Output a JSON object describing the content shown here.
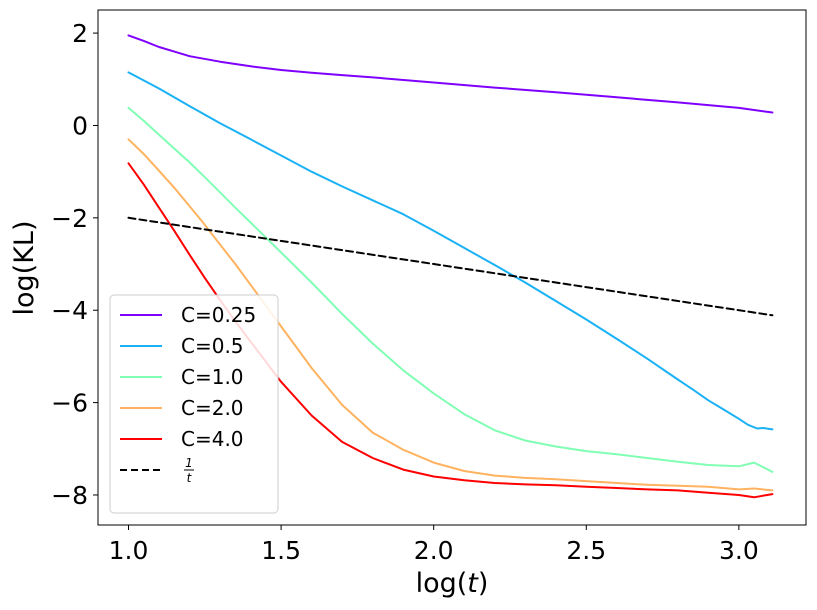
{
  "chart_data": {
    "type": "line",
    "title": "",
    "xlabel": "log(t)",
    "ylabel": "log(KL)",
    "xlim": [
      0.9,
      3.22
    ],
    "ylim": [
      -8.65,
      2.5
    ],
    "xticks": [
      1.0,
      1.5,
      2.0,
      2.5,
      3.0
    ],
    "xtick_labels": [
      "1.0",
      "1.5",
      "2.0",
      "2.5",
      "3.0"
    ],
    "yticks": [
      2,
      0,
      -2,
      -4,
      -6,
      -8
    ],
    "ytick_labels": [
      "2",
      "0",
      "−2",
      "−4",
      "−6",
      "−8"
    ],
    "legend_position": "lower-left",
    "series": [
      {
        "name": "C=0.25",
        "color": "#8000ff",
        "dashed": false,
        "x": [
          1.0,
          1.05,
          1.1,
          1.15,
          1.2,
          1.3,
          1.4,
          1.5,
          1.6,
          1.7,
          1.8,
          2.0,
          2.2,
          2.4,
          2.6,
          2.8,
          3.0,
          3.11
        ],
        "y": [
          1.95,
          1.83,
          1.7,
          1.6,
          1.5,
          1.38,
          1.28,
          1.2,
          1.14,
          1.09,
          1.04,
          0.93,
          0.82,
          0.72,
          0.61,
          0.5,
          0.38,
          0.28
        ]
      },
      {
        "name": "C=0.5",
        "color": "#1ab2f5",
        "dashed": false,
        "x": [
          1.0,
          1.1,
          1.2,
          1.3,
          1.4,
          1.5,
          1.6,
          1.7,
          1.8,
          1.9,
          2.0,
          2.1,
          2.2,
          2.3,
          2.4,
          2.5,
          2.6,
          2.7,
          2.8,
          2.85,
          2.9,
          2.95,
          3.0,
          3.03,
          3.06,
          3.08,
          3.11
        ],
        "y": [
          1.15,
          0.8,
          0.42,
          0.05,
          -0.3,
          -0.65,
          -1.0,
          -1.32,
          -1.62,
          -1.92,
          -2.28,
          -2.65,
          -3.02,
          -3.4,
          -3.8,
          -4.2,
          -4.62,
          -5.05,
          -5.5,
          -5.72,
          -5.95,
          -6.15,
          -6.35,
          -6.48,
          -6.56,
          -6.55,
          -6.58
        ]
      },
      {
        "name": "C=1.0",
        "color": "#80ffb4",
        "dashed": false,
        "x": [
          1.0,
          1.05,
          1.1,
          1.15,
          1.2,
          1.25,
          1.3,
          1.35,
          1.4,
          1.5,
          1.6,
          1.7,
          1.8,
          1.9,
          2.0,
          2.1,
          2.2,
          2.3,
          2.4,
          2.5,
          2.6,
          2.7,
          2.8,
          2.9,
          3.0,
          3.05,
          3.11
        ],
        "y": [
          0.38,
          0.1,
          -0.2,
          -0.5,
          -0.8,
          -1.12,
          -1.45,
          -1.78,
          -2.1,
          -2.75,
          -3.4,
          -4.08,
          -4.72,
          -5.3,
          -5.8,
          -6.25,
          -6.6,
          -6.82,
          -6.95,
          -7.05,
          -7.12,
          -7.2,
          -7.28,
          -7.35,
          -7.38,
          -7.3,
          -7.5
        ]
      },
      {
        "name": "C=2.0",
        "color": "#ffb360",
        "dashed": false,
        "x": [
          1.0,
          1.05,
          1.1,
          1.15,
          1.2,
          1.25,
          1.3,
          1.35,
          1.4,
          1.5,
          1.6,
          1.7,
          1.8,
          1.9,
          2.0,
          2.1,
          2.2,
          2.3,
          2.4,
          2.5,
          2.6,
          2.7,
          2.8,
          2.9,
          3.0,
          3.05,
          3.11
        ],
        "y": [
          -0.3,
          -0.62,
          -0.98,
          -1.35,
          -1.75,
          -2.15,
          -2.58,
          -3.0,
          -3.45,
          -4.35,
          -5.25,
          -6.05,
          -6.65,
          -7.02,
          -7.3,
          -7.48,
          -7.58,
          -7.63,
          -7.66,
          -7.7,
          -7.74,
          -7.78,
          -7.8,
          -7.82,
          -7.88,
          -7.86,
          -7.9
        ]
      },
      {
        "name": "C=4.0",
        "color": "#ff0000",
        "dashed": false,
        "x": [
          1.0,
          1.05,
          1.1,
          1.15,
          1.2,
          1.25,
          1.3,
          1.35,
          1.4,
          1.5,
          1.6,
          1.7,
          1.8,
          1.9,
          2.0,
          2.1,
          2.2,
          2.3,
          2.4,
          2.5,
          2.6,
          2.7,
          2.8,
          2.9,
          3.0,
          3.05,
          3.11
        ],
        "y": [
          -0.82,
          -1.28,
          -1.78,
          -2.28,
          -2.8,
          -3.3,
          -3.78,
          -4.24,
          -4.68,
          -5.55,
          -6.28,
          -6.85,
          -7.2,
          -7.45,
          -7.6,
          -7.68,
          -7.74,
          -7.77,
          -7.79,
          -7.82,
          -7.85,
          -7.88,
          -7.9,
          -7.95,
          -8.0,
          -8.05,
          -7.98
        ]
      },
      {
        "name": "1/t",
        "color": "#000000",
        "dashed": true,
        "x": [
          1.0,
          3.11
        ],
        "y": [
          -2.0,
          -4.11
        ]
      }
    ]
  },
  "legend": {
    "frac_numerator": "1",
    "frac_denominator": "t"
  }
}
